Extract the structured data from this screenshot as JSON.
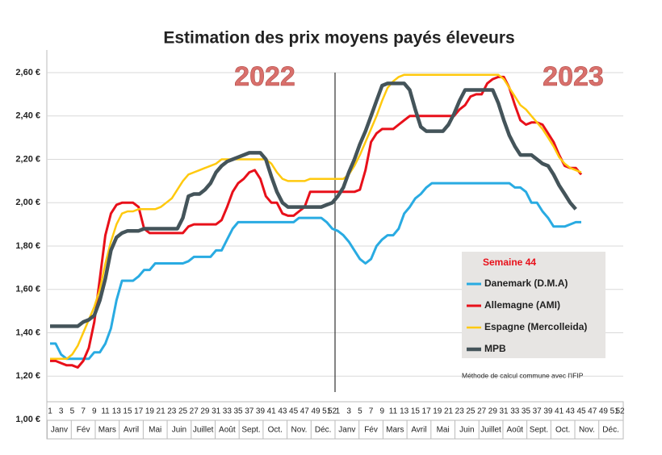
{
  "chart_data": {
    "type": "line",
    "title": "Estimation des prix moyens payés éleveurs",
    "annotations": [
      "2022",
      "2023",
      "Méthode de calcul commune avec l'IFIP"
    ],
    "legend_title": "Semaine 44",
    "categories": [
      "1",
      null,
      "3",
      null,
      "5",
      null,
      "7",
      null,
      "9",
      null,
      "11",
      null,
      "13",
      null,
      "15",
      null,
      "17",
      null,
      "19",
      null,
      "21",
      null,
      "23",
      null,
      "25",
      null,
      "27",
      null,
      "29",
      null,
      "31",
      null,
      "33",
      null,
      "35",
      null,
      "37",
      null,
      "39",
      null,
      "41",
      null,
      "43",
      null,
      "45",
      null,
      "47",
      null,
      "49",
      null,
      "51",
      "52",
      "1",
      null,
      "3",
      null,
      "5",
      null,
      "7",
      null,
      "9",
      null,
      "11",
      null,
      "13",
      null,
      "15",
      null,
      "17",
      null,
      "19",
      null,
      "21",
      null,
      "23",
      null,
      "25",
      null,
      "27",
      null,
      "29",
      null,
      "31",
      null,
      "33",
      null,
      "35",
      null,
      "37",
      null,
      "39",
      null,
      "41",
      null,
      "43",
      null,
      "45",
      null,
      "47",
      null,
      "49",
      null,
      "51",
      "52"
    ],
    "month_labels": [
      "Janv",
      "Fév",
      "Mars",
      "Avril",
      "Mai",
      "Juin",
      "Juillet",
      "Août",
      "Sept.",
      "Oct.",
      "Nov.",
      "Déc.",
      "Janv",
      "Fév",
      "Mars",
      "Avril",
      "Mai",
      "Juin",
      "Juillet",
      "Août",
      "Sept.",
      "Oct.",
      "Nov.",
      "Déc."
    ],
    "ylim": [
      1,
      2.6
    ],
    "yticks": [
      {
        "value": 1,
        "label": "1,00 €"
      },
      {
        "value": 1.2,
        "label": "1,20 €"
      },
      {
        "value": 1.4,
        "label": "1,40 €"
      },
      {
        "value": 1.6,
        "label": "1,60 €"
      },
      {
        "value": 1.8,
        "label": "1,80 €"
      },
      {
        "value": 2,
        "label": "2,00 €"
      },
      {
        "value": 2.2,
        "label": "2,20 €"
      },
      {
        "value": 2.4,
        "label": "2,40 €"
      },
      {
        "value": 2.6,
        "label": "2,60 €"
      }
    ],
    "grid": true,
    "series": [
      {
        "name": "Danemark (D.M.A)",
        "color": "#29abe2",
        "width": 3,
        "values": [
          1.35,
          1.35,
          1.3,
          1.28,
          1.28,
          1.28,
          1.28,
          1.28,
          1.31,
          1.31,
          1.35,
          1.42,
          1.55,
          1.64,
          1.64,
          1.64,
          1.66,
          1.69,
          1.69,
          1.72,
          1.72,
          1.72,
          1.72,
          1.72,
          1.72,
          1.73,
          1.75,
          1.75,
          1.75,
          1.75,
          1.78,
          1.78,
          1.83,
          1.88,
          1.91,
          1.91,
          1.91,
          1.91,
          1.91,
          1.91,
          1.91,
          1.91,
          1.91,
          1.91,
          1.91,
          1.93,
          1.93,
          1.93,
          1.93,
          1.93,
          1.91,
          1.88,
          1.87,
          1.85,
          1.82,
          1.78,
          1.74,
          1.72,
          1.74,
          1.8,
          1.83,
          1.85,
          1.85,
          1.88,
          1.95,
          1.98,
          2.02,
          2.04,
          2.07,
          2.09,
          2.09,
          2.09,
          2.09,
          2.09,
          2.09,
          2.09,
          2.09,
          2.09,
          2.09,
          2.09,
          2.09,
          2.09,
          2.09,
          2.09,
          2.07,
          2.07,
          2.05,
          2.0,
          2.0,
          1.96,
          1.93,
          1.89,
          1.89,
          1.89,
          1.9,
          1.91,
          1.91,
          null,
          null,
          null,
          null,
          null,
          null,
          null
        ]
      },
      {
        "name": "Allemagne (AMI)",
        "color": "#e8101a",
        "width": 3,
        "values": [
          1.27,
          1.27,
          1.26,
          1.25,
          1.25,
          1.24,
          1.27,
          1.33,
          1.45,
          1.65,
          1.85,
          1.95,
          1.99,
          2.0,
          2.0,
          2.0,
          1.98,
          1.88,
          1.86,
          1.86,
          1.86,
          1.86,
          1.86,
          1.86,
          1.86,
          1.89,
          1.9,
          1.9,
          1.9,
          1.9,
          1.9,
          1.92,
          1.98,
          2.05,
          2.09,
          2.11,
          2.14,
          2.15,
          2.11,
          2.03,
          2.0,
          2.0,
          1.95,
          1.94,
          1.94,
          1.96,
          1.98,
          2.05,
          2.05,
          2.05,
          2.05,
          2.05,
          2.05,
          2.05,
          2.05,
          2.05,
          2.06,
          2.15,
          2.28,
          2.32,
          2.34,
          2.34,
          2.34,
          2.36,
          2.38,
          2.4,
          2.4,
          2.4,
          2.4,
          2.4,
          2.4,
          2.4,
          2.4,
          2.4,
          2.43,
          2.45,
          2.49,
          2.5,
          2.5,
          2.55,
          2.57,
          2.58,
          2.58,
          2.53,
          2.45,
          2.38,
          2.36,
          2.37,
          2.37,
          2.36,
          2.32,
          2.28,
          2.22,
          2.17,
          2.16,
          2.16,
          2.13,
          null,
          null,
          null,
          null,
          null,
          null,
          null
        ]
      },
      {
        "name": "Espagne (Mercolleida)",
        "color": "#ffc90e",
        "width": 2.5,
        "values": [
          1.28,
          1.28,
          1.28,
          1.28,
          1.3,
          1.34,
          1.4,
          1.46,
          1.52,
          1.6,
          1.72,
          1.82,
          1.9,
          1.95,
          1.96,
          1.96,
          1.97,
          1.97,
          1.97,
          1.97,
          1.98,
          2.0,
          2.02,
          2.06,
          2.1,
          2.13,
          2.14,
          2.15,
          2.16,
          2.17,
          2.18,
          2.2,
          2.2,
          2.2,
          2.2,
          2.2,
          2.2,
          2.2,
          2.2,
          2.2,
          2.18,
          2.14,
          2.11,
          2.1,
          2.1,
          2.1,
          2.1,
          2.11,
          2.11,
          2.11,
          2.11,
          2.11,
          2.11,
          2.11,
          2.13,
          2.17,
          2.22,
          2.28,
          2.34,
          2.4,
          2.47,
          2.53,
          2.56,
          2.58,
          2.59,
          2.59,
          2.59,
          2.59,
          2.59,
          2.59,
          2.59,
          2.59,
          2.59,
          2.59,
          2.59,
          2.59,
          2.59,
          2.59,
          2.59,
          2.59,
          2.59,
          2.59,
          2.57,
          2.53,
          2.49,
          2.45,
          2.43,
          2.4,
          2.37,
          2.34,
          2.3,
          2.26,
          2.21,
          2.18,
          2.16,
          2.15,
          2.14,
          null,
          null,
          null,
          null,
          null,
          null,
          null
        ]
      },
      {
        "name": "MPB",
        "color": "#44545a",
        "width": 4.5,
        "values": [
          1.43,
          1.43,
          1.43,
          1.43,
          1.43,
          1.43,
          1.45,
          1.46,
          1.48,
          1.55,
          1.65,
          1.78,
          1.84,
          1.86,
          1.87,
          1.87,
          1.87,
          1.88,
          1.88,
          1.88,
          1.88,
          1.88,
          1.88,
          1.88,
          1.93,
          2.03,
          2.04,
          2.04,
          2.06,
          2.09,
          2.14,
          2.17,
          2.19,
          2.2,
          2.21,
          2.22,
          2.23,
          2.23,
          2.23,
          2.2,
          2.12,
          2.05,
          2.0,
          1.98,
          1.98,
          1.98,
          1.98,
          1.98,
          1.98,
          1.98,
          1.99,
          2.0,
          2.03,
          2.07,
          2.14,
          2.2,
          2.27,
          2.33,
          2.4,
          2.47,
          2.54,
          2.55,
          2.55,
          2.55,
          2.55,
          2.52,
          2.43,
          2.35,
          2.33,
          2.33,
          2.33,
          2.33,
          2.36,
          2.41,
          2.47,
          2.52,
          2.52,
          2.52,
          2.52,
          2.52,
          2.52,
          2.46,
          2.38,
          2.31,
          2.26,
          2.22,
          2.22,
          2.22,
          2.2,
          2.18,
          2.17,
          2.13,
          2.08,
          2.04,
          2.0,
          1.97,
          null,
          null,
          null,
          null,
          null,
          null,
          null,
          null
        ]
      }
    ]
  }
}
